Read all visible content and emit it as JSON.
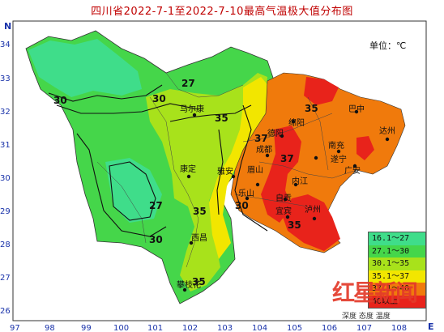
{
  "title": "四川省2022-7-1至2022-7-10最高气温极大值分布图",
  "unit_label": "单位：℃",
  "axes": {
    "north_letter": "N",
    "east_letter": "E",
    "lon_ticks": [
      "97",
      "98",
      "99",
      "100",
      "101",
      "102",
      "103",
      "104",
      "105",
      "106",
      "107",
      "108"
    ],
    "lat_ticks": [
      "34",
      "33",
      "32",
      "31",
      "30",
      "29",
      "28",
      "27",
      "26"
    ]
  },
  "contour_labels": [
    "27",
    "30",
    "35",
    "37",
    "30",
    "35",
    "27",
    "30",
    "35",
    "37",
    "35",
    "30",
    "35"
  ],
  "cities": [
    "马尔康",
    "康定",
    "雅安",
    "眉山",
    "成都",
    "德阳",
    "绵阳",
    "巴中",
    "达州",
    "南充",
    "遂宁",
    "宜宾",
    "泸州",
    "西昌",
    "攀枝花",
    "乐山",
    "内江",
    "自贡",
    "广安"
  ],
  "legend": [
    {
      "label": "16.1～27",
      "color": "#3fdd8a"
    },
    {
      "label": "27.1～30",
      "color": "#45d64a"
    },
    {
      "label": "30.1～35",
      "color": "#a8e21b"
    },
    {
      "label": "35.1～37",
      "color": "#f2e600"
    },
    {
      "label": "37.1～40",
      "color": "#f07a0c"
    },
    {
      "label": "40以上",
      "color": "#e8231b"
    }
  ],
  "watermark": {
    "main": "红星新闻",
    "sub": "深度 态度 温度"
  }
}
